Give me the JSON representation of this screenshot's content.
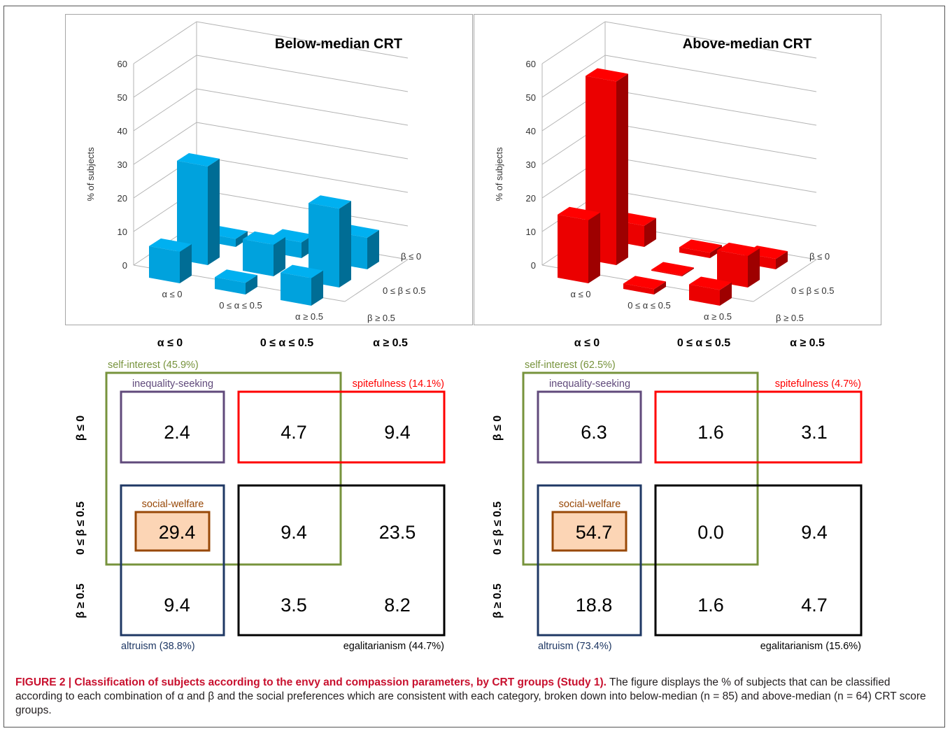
{
  "chart_data": [
    {
      "type": "bar3d",
      "title": "Below-median CRT",
      "ylabel": "% of subjects",
      "ylim": [
        0,
        60
      ],
      "yticks": [
        "0",
        "10",
        "20",
        "30",
        "40",
        "50",
        "60"
      ],
      "alpha_categories": [
        "α ≤ 0",
        "0 ≤ α ≤ 0.5",
        "α ≥ 0.5"
      ],
      "beta_categories": [
        "β ≤ 0",
        "0 ≤ β ≤ 0.5",
        "β ≥ 0.5"
      ],
      "color": "#00b0f0",
      "series": [
        {
          "name": "β ≤ 0",
          "values": [
            2.4,
            4.7,
            9.4
          ]
        },
        {
          "name": "0 ≤ β ≤ 0.5",
          "values": [
            29.4,
            9.4,
            23.5
          ]
        },
        {
          "name": "β ≥ 0.5",
          "values": [
            9.4,
            3.5,
            8.2
          ]
        }
      ]
    },
    {
      "type": "bar3d",
      "title": "Above-median CRT",
      "ylabel": "% of subjects",
      "ylim": [
        0,
        60
      ],
      "yticks": [
        "0",
        "10",
        "20",
        "30",
        "40",
        "50",
        "60"
      ],
      "alpha_categories": [
        "α ≤ 0",
        "0 ≤ α ≤ 0.5",
        "α ≥ 0.5"
      ],
      "beta_categories": [
        "β ≤ 0",
        "0 ≤ β ≤ 0.5",
        "β ≥ 0.5"
      ],
      "color": "#ff0000",
      "series": [
        {
          "name": "β ≤ 0",
          "values": [
            6.3,
            1.6,
            3.1
          ]
        },
        {
          "name": "0 ≤ β ≤ 0.5",
          "values": [
            54.7,
            0.0,
            9.4
          ]
        },
        {
          "name": "β ≥ 0.5",
          "values": [
            18.8,
            1.6,
            4.7
          ]
        }
      ]
    }
  ],
  "tables": [
    {
      "col_headers": [
        "α ≤ 0",
        "0 ≤ α ≤ 0.5",
        "α ≥ 0.5"
      ],
      "row_headers": [
        "β ≤ 0",
        "0 ≤ β ≤ 0.5",
        "β ≥ 0.5"
      ],
      "cells": [
        [
          "2.4",
          "4.7",
          "9.4"
        ],
        [
          "29.4",
          "9.4",
          "23.5"
        ],
        [
          "9.4",
          "3.5",
          "8.2"
        ]
      ],
      "labels": {
        "self_interest": "self-interest (45.9%)",
        "inequality_seeking": "inequality-seeking",
        "spitefulness": "spitefulness (14.1%)",
        "social_welfare": "social-welfare",
        "altruism": "altruism (38.8%)",
        "egalitarianism": "egalitarianism (44.7%)"
      }
    },
    {
      "col_headers": [
        "α ≤ 0",
        "0 ≤ α ≤ 0.5",
        "α ≥ 0.5"
      ],
      "row_headers": [
        "β ≤ 0",
        "0 ≤ β ≤ 0.5",
        "β ≥ 0.5"
      ],
      "cells": [
        [
          "6.3",
          "1.6",
          "3.1"
        ],
        [
          "54.7",
          "0.0",
          "9.4"
        ],
        [
          "18.8",
          "1.6",
          "4.7"
        ]
      ],
      "labels": {
        "self_interest": "self-interest (62.5%)",
        "inequality_seeking": "inequality-seeking",
        "spitefulness": "spitefulness (4.7%)",
        "social_welfare": "social-welfare",
        "altruism": "altruism (73.4%)",
        "egalitarianism": "egalitarianism (15.6%)"
      }
    }
  ],
  "colors": {
    "self_interest": "#77933c",
    "inequality_seeking": "#604a7b",
    "spitefulness": "#ff0000",
    "social_welfare": "#984807",
    "social_welfare_fill": "#fcd5b5",
    "altruism": "#1f3864",
    "egalitarianism": "#000000"
  },
  "caption": {
    "figure_label": "FIGURE 2 | Classification of subjects according to the envy and compassion parameters, by CRT groups (Study 1).",
    "text": "The figure displays the % of subjects that can be classified according to each combination of α and β and the social preferences which are consistent with each category, broken down into below-median (n = 85) and above-median (n = 64) CRT score groups."
  }
}
